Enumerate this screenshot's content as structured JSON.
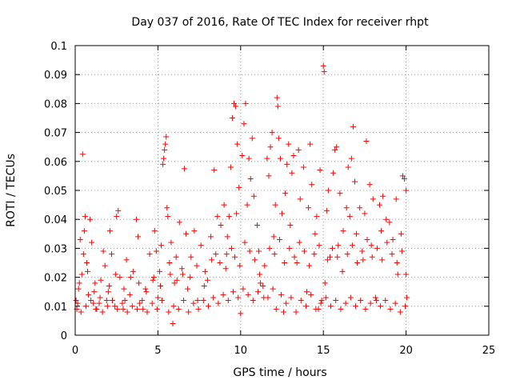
{
  "chart_data": {
    "type": "scatter",
    "title": "Day 037 of 2016, Rate Of TEC Index for receiver rhpt",
    "xlabel": "GPS time / hours",
    "ylabel": "ROTI / TECUs",
    "xlim": [
      0,
      25
    ],
    "ylim": [
      0,
      0.1
    ],
    "xticks": [
      0,
      5,
      10,
      15,
      20,
      25
    ],
    "xtick_labels": [
      "0",
      "5",
      "10",
      "15",
      "20",
      "25"
    ],
    "yticks": [
      0,
      0.01,
      0.02,
      0.03,
      0.04,
      0.05,
      0.06,
      0.07,
      0.08,
      0.09,
      0.1
    ],
    "ytick_labels": [
      "0",
      "0.01",
      "0.02",
      "0.03",
      "0.04",
      "0.05",
      "0.06",
      "0.07",
      "0.08",
      "0.09",
      "0.1"
    ],
    "grid": true,
    "marker": "+",
    "colors": {
      "points": "#ff0000",
      "grid": "#a0a0a0",
      "axes": "#000000"
    },
    "series": [
      {
        "name": "ROTI",
        "points": [
          [
            0.05,
            0.012
          ],
          [
            0.1,
            0.009
          ],
          [
            0.2,
            0.016
          ],
          [
            0.3,
            0.033
          ],
          [
            0.4,
            0.021
          ],
          [
            0.45,
            0.0625
          ],
          [
            0.5,
            0.028
          ],
          [
            0.55,
            0.036
          ],
          [
            0.6,
            0.041
          ],
          [
            0.7,
            0.025
          ],
          [
            0.8,
            0.014
          ],
          [
            0.9,
            0.04
          ],
          [
            1.0,
            0.032
          ],
          [
            1.1,
            0.011
          ],
          [
            1.2,
            0.018
          ],
          [
            1.3,
            0.009
          ],
          [
            1.5,
            0.013
          ],
          [
            1.7,
            0.029
          ],
          [
            1.8,
            0.024
          ],
          [
            1.9,
            0.012
          ],
          [
            2.0,
            0.015
          ],
          [
            2.1,
            0.036
          ],
          [
            2.2,
            0.028
          ],
          [
            2.4,
            0.01
          ],
          [
            2.5,
            0.041
          ],
          [
            2.6,
            0.043
          ],
          [
            2.7,
            0.02
          ],
          [
            2.9,
            0.009
          ],
          [
            3.0,
            0.012
          ],
          [
            3.1,
            0.026
          ],
          [
            3.3,
            0.014
          ],
          [
            3.5,
            0.022
          ],
          [
            3.7,
            0.04
          ],
          [
            3.8,
            0.034
          ],
          [
            3.9,
            0.011
          ],
          [
            4.1,
            0.009
          ],
          [
            4.3,
            0.015
          ],
          [
            4.5,
            0.028
          ],
          [
            4.7,
            0.019
          ],
          [
            4.8,
            0.036
          ],
          [
            4.9,
            0.029
          ],
          [
            5.0,
            0.013
          ],
          [
            5.1,
            0.022
          ],
          [
            5.2,
            0.031
          ],
          [
            5.3,
            0.059
          ],
          [
            5.35,
            0.061
          ],
          [
            5.4,
            0.064
          ],
          [
            5.45,
            0.066
          ],
          [
            5.5,
            0.0685
          ],
          [
            5.55,
            0.044
          ],
          [
            5.6,
            0.041
          ],
          [
            5.7,
            0.025
          ],
          [
            5.8,
            0.032
          ],
          [
            5.9,
            0.004
          ],
          [
            6.0,
            0.018
          ],
          [
            6.1,
            0.027
          ],
          [
            6.3,
            0.039
          ],
          [
            6.5,
            0.021
          ],
          [
            6.6,
            0.0575
          ],
          [
            6.7,
            0.035
          ],
          [
            6.8,
            0.016
          ],
          [
            7.0,
            0.027
          ],
          [
            7.2,
            0.036
          ],
          [
            7.4,
            0.012
          ],
          [
            7.6,
            0.031
          ],
          [
            7.8,
            0.017
          ],
          [
            8.0,
            0.019
          ],
          [
            8.2,
            0.034
          ],
          [
            8.4,
            0.057
          ],
          [
            8.5,
            0.028
          ],
          [
            8.6,
            0.041
          ],
          [
            8.8,
            0.038
          ],
          [
            9.0,
            0.045
          ],
          [
            9.1,
            0.023
          ],
          [
            9.2,
            0.034
          ],
          [
            9.3,
            0.041
          ],
          [
            9.4,
            0.058
          ],
          [
            9.5,
            0.075
          ],
          [
            9.6,
            0.08
          ],
          [
            9.7,
            0.079
          ],
          [
            9.75,
            0.042
          ],
          [
            9.8,
            0.066
          ],
          [
            9.9,
            0.051
          ],
          [
            10.0,
            0.0075
          ],
          [
            10.1,
            0.062
          ],
          [
            10.2,
            0.073
          ],
          [
            10.3,
            0.08
          ],
          [
            10.4,
            0.045
          ],
          [
            10.5,
            0.061
          ],
          [
            10.6,
            0.054
          ],
          [
            10.7,
            0.068
          ],
          [
            10.8,
            0.048
          ],
          [
            11.0,
            0.038
          ],
          [
            11.1,
            0.029
          ],
          [
            11.2,
            0.018
          ],
          [
            11.4,
            0.013
          ],
          [
            11.6,
            0.061
          ],
          [
            11.7,
            0.055
          ],
          [
            11.8,
            0.065
          ],
          [
            11.9,
            0.07
          ],
          [
            12.0,
            0.034
          ],
          [
            12.1,
            0.045
          ],
          [
            12.2,
            0.082
          ],
          [
            12.25,
            0.079
          ],
          [
            12.3,
            0.068
          ],
          [
            12.4,
            0.061
          ],
          [
            12.5,
            0.042
          ],
          [
            12.6,
            0.008
          ],
          [
            12.7,
            0.049
          ],
          [
            12.8,
            0.059
          ],
          [
            12.9,
            0.066
          ],
          [
            13.0,
            0.038
          ],
          [
            13.1,
            0.056
          ],
          [
            13.2,
            0.062
          ],
          [
            13.4,
            0.025
          ],
          [
            13.5,
            0.064
          ],
          [
            13.6,
            0.047
          ],
          [
            13.8,
            0.058
          ],
          [
            14.0,
            0.015
          ],
          [
            14.1,
            0.044
          ],
          [
            14.2,
            0.066
          ],
          [
            14.3,
            0.052
          ],
          [
            14.5,
            0.035
          ],
          [
            14.6,
            0.041
          ],
          [
            14.7,
            0.009
          ],
          [
            14.8,
            0.057
          ],
          [
            14.9,
            0.012
          ],
          [
            15.0,
            0.093
          ],
          [
            15.05,
            0.091
          ],
          [
            15.1,
            0.018
          ],
          [
            15.2,
            0.043
          ],
          [
            15.3,
            0.05
          ],
          [
            15.4,
            0.027
          ],
          [
            15.6,
            0.056
          ],
          [
            15.7,
            0.064
          ],
          [
            15.8,
            0.065
          ],
          [
            15.9,
            0.031
          ],
          [
            16.0,
            0.049
          ],
          [
            16.2,
            0.036
          ],
          [
            16.4,
            0.044
          ],
          [
            16.5,
            0.058
          ],
          [
            16.6,
            0.041
          ],
          [
            16.7,
            0.061
          ],
          [
            16.8,
            0.072
          ],
          [
            16.9,
            0.053
          ],
          [
            17.0,
            0.035
          ],
          [
            17.2,
            0.044
          ],
          [
            17.4,
            0.026
          ],
          [
            17.5,
            0.042
          ],
          [
            17.6,
            0.067
          ],
          [
            17.8,
            0.052
          ],
          [
            17.9,
            0.031
          ],
          [
            18.0,
            0.047
          ],
          [
            18.2,
            0.012
          ],
          [
            18.4,
            0.045
          ],
          [
            18.5,
            0.036
          ],
          [
            18.6,
            0.048
          ],
          [
            18.8,
            0.04
          ],
          [
            19.0,
            0.039
          ],
          [
            19.2,
            0.033
          ],
          [
            19.4,
            0.047
          ],
          [
            19.5,
            0.021
          ],
          [
            19.7,
            0.035
          ],
          [
            19.8,
            0.055
          ],
          [
            19.9,
            0.054
          ],
          [
            20.0,
            0.05
          ],
          [
            20.05,
            0.013
          ],
          [
            0.15,
            0.011
          ],
          [
            0.35,
            0.008
          ],
          [
            0.65,
            0.01
          ],
          [
            0.95,
            0.012
          ],
          [
            1.25,
            0.009
          ],
          [
            1.45,
            0.011
          ],
          [
            1.65,
            0.008
          ],
          [
            1.95,
            0.01
          ],
          [
            2.25,
            0.012
          ],
          [
            2.55,
            0.009
          ],
          [
            2.85,
            0.011
          ],
          [
            3.15,
            0.008
          ],
          [
            3.45,
            0.01
          ],
          [
            3.75,
            0.009
          ],
          [
            4.05,
            0.012
          ],
          [
            4.35,
            0.008
          ],
          [
            4.65,
            0.011
          ],
          [
            4.95,
            0.009
          ],
          [
            5.25,
            0.012
          ],
          [
            5.65,
            0.008
          ],
          [
            5.95,
            0.01
          ],
          [
            6.25,
            0.009
          ],
          [
            6.55,
            0.012
          ],
          [
            6.85,
            0.008
          ],
          [
            7.15,
            0.011
          ],
          [
            7.45,
            0.009
          ],
          [
            7.75,
            0.012
          ],
          [
            8.05,
            0.01
          ],
          [
            8.35,
            0.013
          ],
          [
            8.65,
            0.011
          ],
          [
            8.95,
            0.014
          ],
          [
            9.25,
            0.012
          ],
          [
            9.55,
            0.015
          ],
          [
            9.85,
            0.013
          ],
          [
            10.15,
            0.016
          ],
          [
            10.45,
            0.014
          ],
          [
            10.75,
            0.012
          ],
          [
            11.05,
            0.015
          ],
          [
            11.35,
            0.017
          ],
          [
            11.65,
            0.013
          ],
          [
            11.95,
            0.016
          ],
          [
            12.15,
            0.009
          ],
          [
            12.45,
            0.014
          ],
          [
            12.75,
            0.011
          ],
          [
            13.05,
            0.013
          ],
          [
            13.35,
            0.008
          ],
          [
            13.65,
            0.012
          ],
          [
            13.95,
            0.01
          ],
          [
            14.25,
            0.014
          ],
          [
            14.55,
            0.009
          ],
          [
            14.85,
            0.011
          ],
          [
            15.15,
            0.013
          ],
          [
            15.45,
            0.01
          ],
          [
            15.75,
            0.012
          ],
          [
            16.05,
            0.009
          ],
          [
            16.35,
            0.011
          ],
          [
            16.65,
            0.013
          ],
          [
            16.95,
            0.01
          ],
          [
            17.25,
            0.012
          ],
          [
            17.55,
            0.009
          ],
          [
            17.85,
            0.011
          ],
          [
            18.15,
            0.013
          ],
          [
            18.45,
            0.01
          ],
          [
            18.75,
            0.012
          ],
          [
            19.05,
            0.009
          ],
          [
            19.35,
            0.011
          ],
          [
            19.65,
            0.008
          ],
          [
            19.95,
            0.01
          ],
          [
            0.25,
            0.018
          ],
          [
            0.75,
            0.022
          ],
          [
            1.15,
            0.015
          ],
          [
            1.55,
            0.019
          ],
          [
            2.05,
            0.017
          ],
          [
            2.45,
            0.021
          ],
          [
            2.95,
            0.016
          ],
          [
            3.35,
            0.02
          ],
          [
            3.85,
            0.018
          ],
          [
            4.25,
            0.016
          ],
          [
            4.75,
            0.02
          ],
          [
            5.15,
            0.017
          ],
          [
            5.75,
            0.021
          ],
          [
            6.15,
            0.019
          ],
          [
            6.45,
            0.023
          ],
          [
            6.95,
            0.02
          ],
          [
            7.35,
            0.024
          ],
          [
            7.85,
            0.022
          ],
          [
            8.25,
            0.026
          ],
          [
            8.75,
            0.025
          ],
          [
            9.15,
            0.028
          ],
          [
            9.45,
            0.03
          ],
          [
            9.65,
            0.027
          ],
          [
            9.95,
            0.024
          ],
          [
            10.25,
            0.032
          ],
          [
            10.55,
            0.029
          ],
          [
            10.85,
            0.026
          ],
          [
            11.15,
            0.021
          ],
          [
            11.45,
            0.024
          ],
          [
            11.75,
            0.03
          ],
          [
            12.05,
            0.028
          ],
          [
            12.35,
            0.033
          ],
          [
            12.65,
            0.025
          ],
          [
            12.95,
            0.03
          ],
          [
            13.25,
            0.027
          ],
          [
            13.55,
            0.032
          ],
          [
            13.85,
            0.029
          ],
          [
            14.15,
            0.024
          ],
          [
            14.45,
            0.028
          ],
          [
            14.75,
            0.031
          ],
          [
            15.25,
            0.026
          ],
          [
            15.55,
            0.03
          ],
          [
            15.85,
            0.027
          ],
          [
            16.15,
            0.022
          ],
          [
            16.45,
            0.028
          ],
          [
            16.75,
            0.031
          ],
          [
            17.05,
            0.025
          ],
          [
            17.35,
            0.029
          ],
          [
            17.65,
            0.033
          ],
          [
            17.95,
            0.027
          ],
          [
            18.25,
            0.03
          ],
          [
            18.55,
            0.026
          ],
          [
            18.85,
            0.032
          ],
          [
            19.15,
            0.028
          ],
          [
            19.45,
            0.025
          ],
          [
            19.75,
            0.029
          ],
          [
            20.0,
            0.021
          ]
        ]
      }
    ]
  }
}
